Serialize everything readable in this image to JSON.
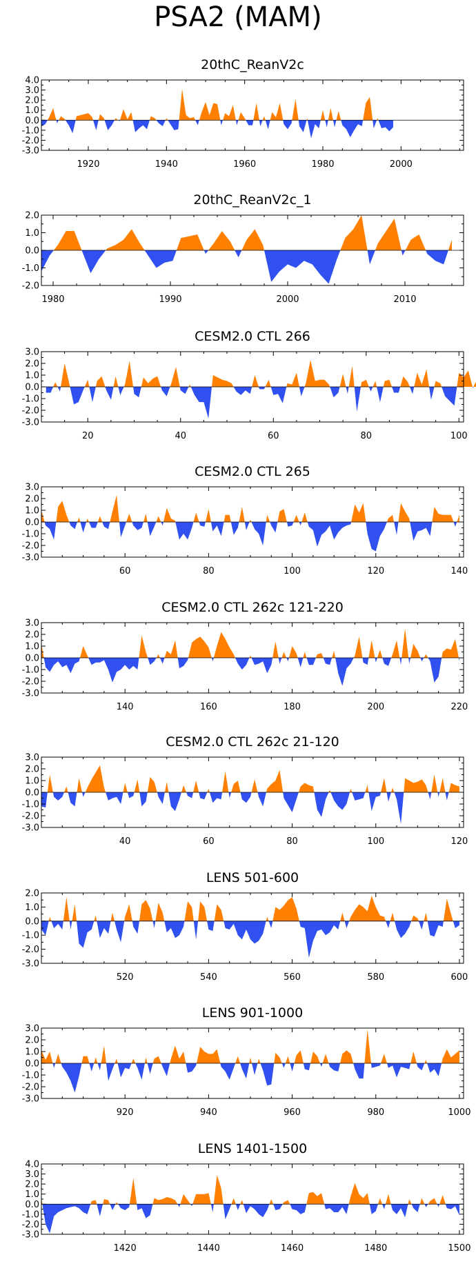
{
  "title": "PSA2 (MAM)",
  "colors": {
    "positive": "#ff8000",
    "negative": "#3050f0",
    "axis": "#000000"
  },
  "chart_data": [
    {
      "type": "area",
      "title": "20thC_ReanV2c",
      "xlim": [
        1908,
        2016
      ],
      "ylim": [
        -3,
        4
      ],
      "yticks": [
        "4.0",
        "3.0",
        "2.0",
        "1.0",
        "0.0",
        "-1.0",
        "-2.0",
        "-3.0"
      ],
      "ytick_values": [
        4,
        3,
        2,
        1,
        0,
        -1,
        -2,
        -3
      ],
      "xticks": [
        1920,
        1940,
        1960,
        1980,
        2000
      ],
      "x_start": 1908,
      "values": [
        -0.6,
        -0.4,
        0.3,
        1.2,
        -0.3,
        0.4,
        0.1,
        -0.5,
        -1.3,
        0.4,
        0.5,
        0.6,
        0.7,
        0.3,
        -1.0,
        0.6,
        0.2,
        -1.0,
        -0.5,
        0.2,
        -0.1,
        1.1,
        0.1,
        0.8,
        -1.2,
        -0.8,
        -0.5,
        -0.9,
        0.4,
        0.2,
        -0.3,
        -0.6,
        0.2,
        -0.4,
        -1.0,
        -0.9,
        3.1,
        0.5,
        0.2,
        0.3,
        -0.5,
        0.8,
        1.8,
        0.5,
        1.7,
        1.6,
        -0.5,
        0.7,
        0.4,
        1.5,
        -0.5,
        0.8,
        0.2,
        -0.5,
        -0.5,
        1.7,
        -0.6,
        0.4,
        -0.9,
        0.8,
        0.3,
        1.7,
        -0.4,
        -0.9,
        -0.3,
        2.1,
        -0.6,
        -1.2,
        0.2,
        -1.8,
        -0.4,
        -0.8,
        1.0,
        -0.7,
        1.2,
        -0.7,
        0.9,
        -0.5,
        -0.9,
        -1.7,
        -1.0,
        -0.4,
        -0.6,
        1.7,
        2.3,
        -0.8,
        0.2,
        -0.8,
        -0.7,
        -1.1,
        -0.7
      ]
    },
    {
      "type": "area",
      "title": "20thC_ReanV2c_1",
      "xlim": [
        1979,
        2015
      ],
      "ylim": [
        -2,
        2
      ],
      "yticks": [
        "2.0",
        "1.0",
        "0.0",
        "-1.0",
        "-2.0"
      ],
      "ytick_values": [
        2,
        1,
        0,
        -1,
        -2
      ],
      "xticks": [
        1980,
        1990,
        2000,
        2010
      ],
      "x_start": 1979,
      "values": [
        -1.2,
        -0.3,
        0.3,
        1.1,
        1.1,
        -0.1,
        -1.3,
        -0.5,
        0.1,
        0.3,
        0.6,
        1.2,
        0.4,
        -0.3,
        -1.0,
        -0.7,
        -0.6,
        0.7,
        0.8,
        0.9,
        -0.2,
        0.4,
        1.1,
        0.5,
        -0.4,
        0.6,
        1.2,
        0.3,
        -1.8,
        -1.2,
        -0.8,
        -1.0,
        -0.6,
        -0.8,
        -1.4,
        -1.9,
        -0.5,
        0.7,
        1.2,
        2.0,
        -0.8,
        0.4,
        1.1,
        1.8,
        -0.3,
        0.6,
        0.9,
        -0.2,
        -0.6,
        -0.8,
        0.6
      ],
      "x_step": 0.7
    },
    {
      "type": "area",
      "title": "CESM2.0 CTL 266",
      "xlim": [
        10,
        101
      ],
      "ylim": [
        -3,
        3
      ],
      "yticks": [
        "3.0",
        "2.0",
        "1.0",
        "0.0",
        "-1.0",
        "-2.0",
        "-3.0"
      ],
      "ytick_values": [
        3,
        2,
        1,
        0,
        -1,
        -2,
        -3
      ],
      "xticks": [
        20,
        40,
        60,
        80,
        100
      ],
      "x_start": 11,
      "values": [
        -0.5,
        -0.5,
        0.4,
        -0.4,
        2.0,
        0.3,
        -1.5,
        -1.3,
        -0.3,
        0.6,
        -1.3,
        0.5,
        0.9,
        -0.3,
        -1.1,
        0.9,
        -0.7,
        0.2,
        2.2,
        -0.6,
        -0.9,
        0.8,
        0.3,
        0.7,
        0.9,
        -0.3,
        -0.8,
        0.3,
        1.7,
        -0.3,
        -0.6,
        0.2,
        -0.7,
        -1.3,
        -1.3,
        -2.7,
        1.0,
        0.8,
        0.6,
        0.5,
        0.3,
        -0.4,
        -0.7,
        -0.3,
        -0.6,
        1.0,
        -0.2,
        -0.2,
        0.6,
        -0.7,
        -0.6,
        -1.4,
        0.3,
        0.2,
        1.2,
        -0.8,
        0.3,
        2.3,
        0.5,
        0.6,
        0.6,
        0.2,
        -0.9,
        -0.5,
        1.1,
        -0.6,
        1.8,
        -2.1,
        0.4,
        0.6,
        -0.4,
        0.5,
        -1.3,
        0.5,
        0.6,
        -0.5,
        -0.5,
        0.9,
        0.4,
        -0.6,
        1.2,
        0.2,
        1.5,
        -1.1,
        0.5,
        0.3,
        -0.8,
        -1.2,
        -1.6,
        1.2,
        0.8,
        1.4,
        -0.1,
        0.7
      ]
    },
    {
      "type": "area",
      "title": "CESM2.0 CTL 265",
      "xlim": [
        40,
        141
      ],
      "ylim": [
        -3,
        3
      ],
      "yticks": [
        "3.0",
        "2.0",
        "1.0",
        "0.0",
        "-1.0",
        "-2.0",
        "-3.0"
      ],
      "ytick_values": [
        3,
        2,
        1,
        0,
        -1,
        -2,
        -3
      ],
      "xticks": [
        60,
        80,
        100,
        120,
        140
      ],
      "x_start": 40,
      "values": [
        1.0,
        -0.3,
        -0.6,
        -1.5,
        1.3,
        1.8,
        0.6,
        -0.3,
        -0.6,
        0.4,
        -0.9,
        0.3,
        -0.5,
        -0.5,
        0.5,
        -0.4,
        -0.6,
        0.9,
        2.3,
        -1.3,
        -0.3,
        0.7,
        -0.3,
        -0.7,
        -0.5,
        0.7,
        -1.2,
        -0.4,
        0.5,
        -0.3,
        1.2,
        0.3,
        0.1,
        -1.5,
        -1.0,
        -1.5,
        -0.5,
        0.8,
        -0.3,
        -0.4,
        1.1,
        -0.8,
        -0.3,
        -1.2,
        0.6,
        0.6,
        -1.1,
        -0.5,
        1.3,
        -0.7,
        0.2,
        -0.6,
        -1.0,
        -2.0,
        0.6,
        -0.3,
        -0.9,
        0.9,
        1.1,
        -0.4,
        -0.3,
        0.6,
        -0.3,
        0.8,
        -0.4,
        -0.7,
        -2.1,
        -1.1,
        -0.8,
        -0.3,
        -1.5,
        -0.9,
        -0.5,
        -0.3,
        -0.2,
        1.5,
        0.8,
        1.6,
        -1.0,
        -2.3,
        -2.5,
        -1.2,
        -0.6,
        0.3,
        0.6,
        -1.1,
        1.6,
        0.9,
        0.3,
        -1.6,
        -0.8,
        -0.7,
        -0.5,
        -1.2,
        1.3,
        0.7,
        0.6,
        0.6,
        0.6,
        -0.4,
        0.6
      ]
    },
    {
      "type": "area",
      "title": "CESM2.0 CTL 262c 121-220",
      "xlim": [
        120,
        221
      ],
      "ylim": [
        -3,
        3
      ],
      "yticks": [
        "3.0",
        "2.0",
        "1.0",
        "0.0",
        "-1.0",
        "-2.0",
        "-3.0"
      ],
      "ytick_values": [
        3,
        2,
        1,
        0,
        -1,
        -2,
        -3
      ],
      "xticks": [
        140,
        160,
        180,
        200,
        220
      ],
      "x_start": 120,
      "values": [
        1.2,
        -0.8,
        -1.2,
        -0.6,
        -0.3,
        -0.8,
        -0.6,
        -1.3,
        -0.5,
        -0.3,
        1.0,
        0.2,
        -0.6,
        -0.4,
        -0.4,
        -0.2,
        -1.0,
        -2.1,
        -1.2,
        -1.0,
        -0.6,
        -1.0,
        -0.7,
        -1.0,
        1.9,
        0.5,
        -0.6,
        -0.3,
        0.3,
        -0.5,
        0.6,
        0.3,
        1.5,
        -0.9,
        -0.7,
        -0.2,
        1.3,
        1.6,
        1.8,
        1.4,
        0.9,
        -0.3,
        1.0,
        2.2,
        1.6,
        0.9,
        0.3,
        -0.5,
        -1.0,
        -0.6,
        0.2,
        -0.6,
        -0.5,
        -0.3,
        -1.3,
        -0.6,
        1.4,
        -0.5,
        0.5,
        -0.3,
        1.0,
        0.4,
        -0.8,
        0.5,
        -0.6,
        -0.6,
        0.3,
        0.4,
        -0.5,
        -0.6,
        0.6,
        -1.3,
        -2.4,
        -0.9,
        -0.5,
        0.2,
        1.8,
        -0.4,
        -0.6,
        1.5,
        -0.4,
        0.7,
        -0.5,
        -0.7,
        0.3,
        1.5,
        -0.6,
        2.5,
        -0.5,
        1.2,
        0.6,
        -0.3,
        0.3,
        -0.3,
        -2.1,
        -1.6,
        0.5,
        0.8,
        0.7,
        1.6,
        -0.3
      ]
    },
    {
      "type": "area",
      "title": "CESM2.0 CTL 262c 21-120",
      "xlim": [
        20,
        121
      ],
      "ylim": [
        -3,
        3
      ],
      "yticks": [
        "3.0",
        "2.0",
        "1.0",
        "0.0",
        "-1.0",
        "-2.0",
        "-3.0"
      ],
      "ytick_values": [
        3,
        2,
        1,
        0,
        -1,
        -2,
        -3
      ],
      "xticks": [
        40,
        60,
        80,
        100,
        120
      ],
      "x_start": 20,
      "values": [
        -1.2,
        -1.3,
        1.5,
        -0.4,
        -0.7,
        -0.4,
        0.5,
        -0.9,
        -1.2,
        1.2,
        -0.4,
        0.4,
        1.1,
        1.7,
        2.3,
        0.4,
        -0.7,
        -0.5,
        -0.4,
        -1.0,
        0.8,
        -0.5,
        -0.3,
        1.1,
        -1.2,
        -0.8,
        1.3,
        0.9,
        -0.4,
        -1.0,
        0.9,
        -1.2,
        -1.6,
        -0.6,
        0.6,
        -0.3,
        -0.5,
        1.0,
        -0.5,
        -0.6,
        0.3,
        -0.9,
        -0.5,
        -0.6,
        1.8,
        -0.5,
        0.7,
        1.0,
        -0.6,
        -0.9,
        -0.4,
        1.1,
        -0.4,
        -1.2,
        0.3,
        0.7,
        1.0,
        1.9,
        -0.5,
        -1.1,
        -1.7,
        -0.6,
        0.5,
        0.8,
        0.6,
        0.5,
        -1.5,
        -2.1,
        -0.6,
        0.2,
        -0.7,
        -1.2,
        -1.5,
        -1.0,
        0.3,
        -0.7,
        -0.6,
        -0.5,
        0.6,
        -1.6,
        -0.4,
        -0.3,
        1.2,
        -0.8,
        0.4,
        -0.6,
        -2.7,
        1.2,
        1.0,
        0.8,
        0.9,
        1.1,
        0.6,
        -0.6,
        1.5,
        -0.4,
        1.2,
        -0.7,
        0.8,
        0.6,
        0.5
      ]
    },
    {
      "type": "area",
      "title": "LENS 501-600",
      "xlim": [
        500,
        601
      ],
      "ylim": [
        -3,
        2
      ],
      "yticks": [
        "2.0",
        "1.0",
        "0.0",
        "-1.0",
        "-2.0",
        "-3.0"
      ],
      "ytick_values": [
        2,
        1,
        0,
        -1,
        -2,
        -3
      ],
      "xticks": [
        520,
        540,
        560,
        580,
        600
      ],
      "x_start": 500,
      "values": [
        -0.6,
        -1.0,
        0.3,
        -0.5,
        -0.2,
        -0.6,
        1.7,
        -0.6,
        1.2,
        -1.6,
        -1.9,
        -0.8,
        -0.6,
        0.4,
        -1.2,
        -0.5,
        -0.9,
        0.6,
        -0.6,
        -1.5,
        0.3,
        1.2,
        -0.4,
        -0.9,
        1.2,
        1.5,
        0.9,
        -0.5,
        1.3,
        0.6,
        -0.8,
        -0.5,
        -1.2,
        -1.0,
        -0.4,
        1.4,
        1.0,
        -1.3,
        1.4,
        1.0,
        -0.6,
        -0.7,
        1.2,
        0.8,
        -0.5,
        -0.6,
        -0.2,
        -1.0,
        -1.3,
        -0.6,
        -1.3,
        -1.6,
        -1.4,
        -0.9,
        0.3,
        -0.5,
        1.0,
        0.8,
        1.1,
        1.5,
        1.7,
        0.9,
        -0.4,
        -0.5,
        -2.6,
        -1.4,
        -0.7,
        -0.6,
        -1.0,
        -0.8,
        -0.3,
        -0.6,
        0.6,
        -0.5,
        0.3,
        0.8,
        1.2,
        1.0,
        0.7,
        1.8,
        1.0,
        0.4,
        0.3,
        -0.5,
        0.6,
        -0.6,
        -1.2,
        -0.9,
        -0.4,
        0.4,
        0.2,
        -0.6,
        0.6,
        -1.0,
        -1.1,
        -0.3,
        -0.4,
        1.6,
        0.5,
        -0.5,
        -0.3
      ]
    },
    {
      "type": "area",
      "title": "LENS 901-1000",
      "xlim": [
        900,
        1001
      ],
      "ylim": [
        -3,
        3
      ],
      "yticks": [
        "3.0",
        "2.0",
        "1.0",
        "0.0",
        "-1.0",
        "-2.0",
        "-3.0"
      ],
      "ytick_values": [
        3,
        2,
        1,
        0,
        -1,
        -2,
        -3
      ],
      "xticks": [
        920,
        940,
        960,
        980,
        1000
      ],
      "x_start": 900,
      "values": [
        1.1,
        0.3,
        1.0,
        -0.4,
        0.8,
        -0.3,
        -0.8,
        -1.5,
        -2.5,
        -1.1,
        0.6,
        0.6,
        -0.7,
        0.5,
        -0.6,
        1.5,
        -1.5,
        -0.5,
        0.4,
        -1.2,
        -0.4,
        -0.5,
        0.4,
        -0.4,
        -1.4,
        0.5,
        -0.9,
        0.4,
        0.6,
        -0.3,
        -1.1,
        0.4,
        1.5,
        0.4,
        1.0,
        -0.8,
        -0.7,
        -0.2,
        1.4,
        1.0,
        0.8,
        0.8,
        1.2,
        -0.3,
        -0.7,
        -1.4,
        -0.4,
        0.6,
        -0.5,
        -1.3,
        0.5,
        -1.0,
        0.4,
        -0.6,
        -1.9,
        -1.8,
        0.9,
        0.5,
        -0.4,
        0.6,
        -0.7,
        0.7,
        1.1,
        -0.5,
        -0.6,
        1.0,
        0.6,
        -0.3,
        0.8,
        -0.3,
        -0.6,
        -0.7,
        0.8,
        1.1,
        0.8,
        -0.5,
        -1.3,
        -1.3,
        2.9,
        -0.4,
        -0.3,
        -0.2,
        0.8,
        -0.4,
        -0.2,
        -1.2,
        -0.3,
        -0.4,
        -0.5,
        1.0,
        -0.3,
        -0.6,
        0.3,
        -0.8,
        -0.5,
        -1.1,
        0.4,
        1.2,
        0.5,
        0.8,
        1.1
      ]
    },
    {
      "type": "area",
      "title": "LENS 1401-1500",
      "xlim": [
        1400,
        1501
      ],
      "ylim": [
        -3,
        4
      ],
      "yticks": [
        "4.0",
        "3.0",
        "2.0",
        "1.0",
        "0.0",
        "-1.0",
        "-2.0",
        "-3.0"
      ],
      "ytick_values": [
        4,
        3,
        2,
        1,
        0,
        -1,
        -2,
        -3
      ],
      "xticks": [
        1420,
        1440,
        1460,
        1480,
        1500
      ],
      "x_start": 1400,
      "values": [
        0.6,
        -2.0,
        -2.9,
        -1.2,
        -0.8,
        -0.6,
        -0.4,
        -0.3,
        -0.2,
        -0.4,
        -0.8,
        -1.0,
        0.3,
        0.4,
        -1.2,
        0.5,
        0.4,
        -0.6,
        0.2,
        -0.4,
        -0.6,
        -0.3,
        2.6,
        -0.6,
        -0.4,
        -1.4,
        -1.1,
        0.6,
        0.4,
        0.5,
        0.7,
        0.6,
        0.4,
        -0.3,
        1.0,
        0.4,
        -0.2,
        1.0,
        1.0,
        1.0,
        1.1,
        -0.8,
        2.9,
        1.6,
        -1.5,
        -0.5,
        0.6,
        -0.6,
        0.4,
        -0.9,
        -0.2,
        -0.5,
        -1.0,
        -1.3,
        -0.6,
        0.5,
        -0.6,
        -0.5,
        0.2,
        0.4,
        -0.5,
        -0.6,
        -1.0,
        -0.8,
        1.1,
        1.2,
        0.8,
        1.1,
        -0.5,
        -0.4,
        -0.8,
        -0.8,
        -0.3,
        -1.0,
        0.8,
        2.1,
        1.0,
        0.6,
        1.1,
        -1.0,
        -0.7,
        0.6,
        -0.5,
        1.0,
        -0.6,
        -1.0,
        -0.4,
        -1.3,
        0.5,
        -0.4,
        -0.8,
        0.6,
        -0.3,
        0.3,
        0.6,
        -0.3,
        0.9,
        -0.4,
        -0.5,
        -0.2,
        -1.1
      ]
    }
  ]
}
